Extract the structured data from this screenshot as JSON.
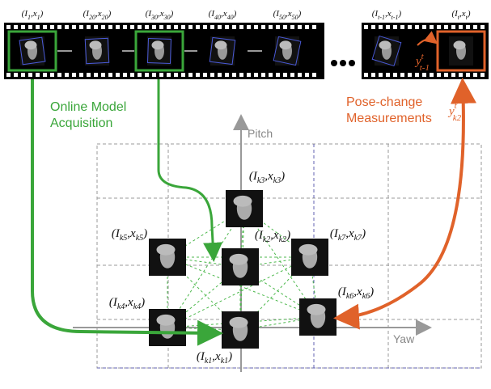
{
  "frames": [
    {
      "label": [
        "(I",
        "1",
        ",x",
        "1",
        ")"
      ]
    },
    {
      "label": [
        "(I",
        "20",
        ",x",
        "20",
        ")"
      ]
    },
    {
      "label": [
        "(I",
        "30",
        ",x",
        "30",
        ")"
      ]
    },
    {
      "label": [
        "(I",
        "40",
        ",x",
        "40",
        ")"
      ]
    },
    {
      "label": [
        "(I",
        "50",
        ",x",
        "50",
        ")"
      ]
    },
    {
      "label": [
        "(I",
        "t-1",
        ",x",
        "t-1",
        ")"
      ]
    },
    {
      "label": [
        "(I",
        "t",
        ",x",
        "t",
        ")"
      ]
    }
  ],
  "nodes": [
    {
      "label": [
        "(I",
        "k1",
        ",x",
        "k1",
        ")"
      ]
    },
    {
      "label": [
        "(I",
        "k2",
        ",x",
        "k2",
        ")"
      ]
    },
    {
      "label": [
        "(I",
        "k3",
        ",x",
        "k3",
        ")"
      ]
    },
    {
      "label": [
        "(I",
        "k4",
        ",x",
        "k4",
        ")"
      ]
    },
    {
      "label": [
        "(I",
        "k5",
        ",x",
        "k5",
        ")"
      ]
    },
    {
      "label": [
        "(I",
        "k6",
        ",x",
        "k6",
        ")"
      ]
    },
    {
      "label": [
        "(I",
        "k7",
        ",x",
        "k7",
        ")"
      ]
    }
  ],
  "annotations": {
    "online": [
      "Online Model",
      "Acquisition"
    ],
    "pose": [
      "Pose-change",
      "Measurements"
    ],
    "pitch": "Pitch",
    "yaw": "Yaw",
    "y_frame": {
      "base": "y",
      "sup": "t",
      "sub": "t-1"
    },
    "y_key": {
      "base": "y",
      "sup": "t",
      "sub": "k2"
    }
  }
}
